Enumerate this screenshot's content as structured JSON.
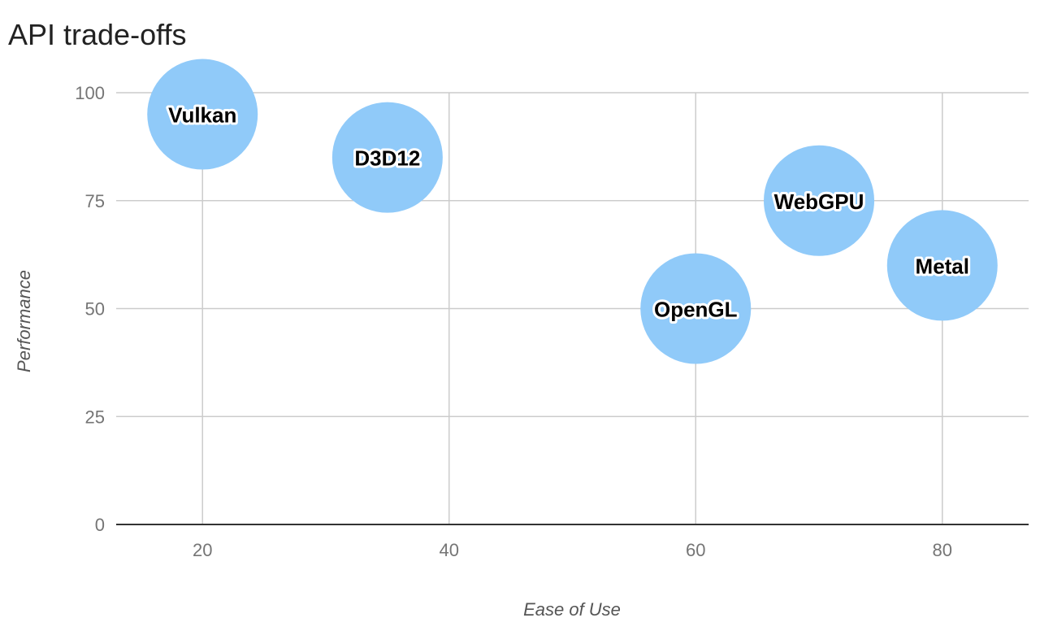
{
  "chart_data": {
    "type": "scatter",
    "title": "API trade-offs",
    "xlabel": "Ease of Use",
    "ylabel": "Performance",
    "xlim": [
      13,
      87
    ],
    "ylim": [
      0,
      100
    ],
    "x_ticks": [
      20,
      40,
      60,
      80
    ],
    "y_ticks": [
      0,
      25,
      50,
      75,
      100
    ],
    "grid": true,
    "bubble_color": "#90CAF9",
    "points": [
      {
        "label": "Vulkan",
        "x": 20,
        "y": 95
      },
      {
        "label": "D3D12",
        "x": 35,
        "y": 85
      },
      {
        "label": "OpenGL",
        "x": 60,
        "y": 50
      },
      {
        "label": "WebGPU",
        "x": 70,
        "y": 75
      },
      {
        "label": "Metal",
        "x": 80,
        "y": 60
      }
    ]
  }
}
